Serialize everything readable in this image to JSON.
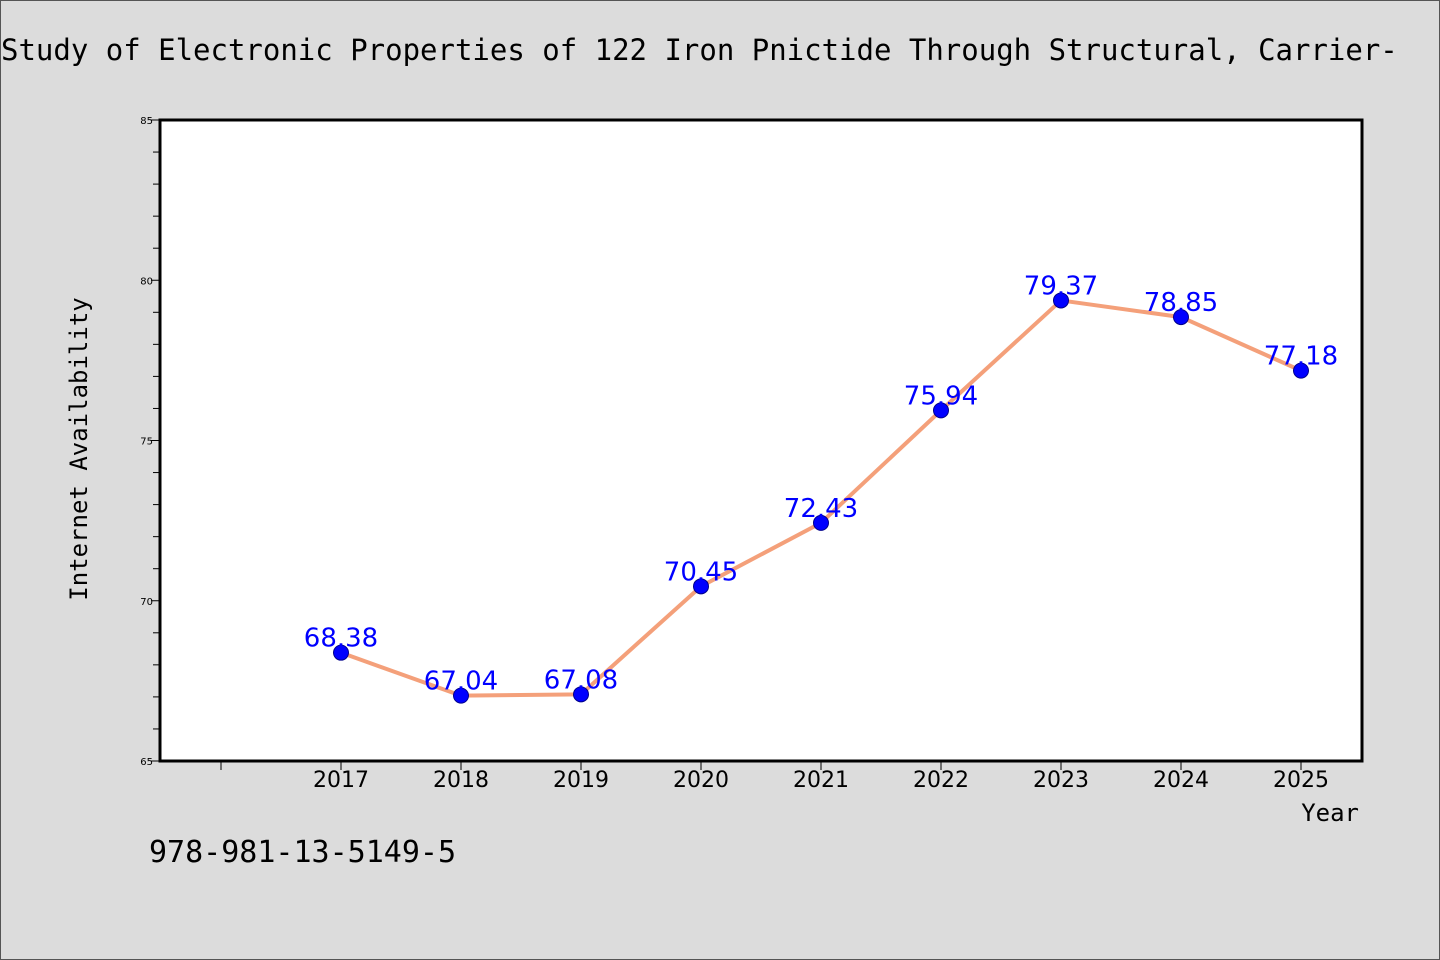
{
  "chart_data": {
    "type": "line",
    "title": "Study of Electronic Properties of 122 Iron Pnictide Through Structural, Carrier-",
    "xlabel": "Year",
    "ylabel": "Internet Availability",
    "categories": [
      "2017",
      "2018",
      "2019",
      "2020",
      "2021",
      "2022",
      "2023",
      "2024",
      "2025"
    ],
    "series": [
      {
        "values": [
          68.38,
          67.04,
          67.08,
          70.45,
          72.43,
          75.94,
          79.37,
          78.85,
          77.18
        ],
        "labels": [
          "68.38",
          "67.04",
          "67.08",
          "70.45",
          "72.43",
          "75.94",
          "79.37",
          "78.85",
          "77.18"
        ]
      }
    ],
    "ylim": [
      65,
      85
    ],
    "yticks": [
      "65",
      "70",
      "75",
      "80",
      "85"
    ],
    "grid": false,
    "line_color": "#f4a07a",
    "marker_color": "#0000ff",
    "label_color": "#0000ff"
  },
  "footer": {
    "isbn": "978-981-13-5149-5"
  }
}
